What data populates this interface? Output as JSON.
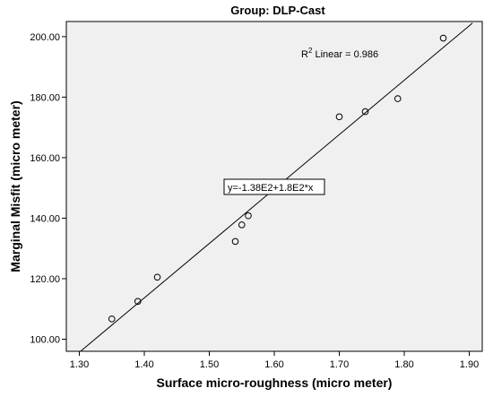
{
  "chart_data": {
    "type": "scatter",
    "title": "Group: DLP-Cast",
    "xlabel": "Surface micro-roughness (micro meter)",
    "ylabel": "Marginal Misfit (micro meter)",
    "xlim": [
      1.28,
      1.92
    ],
    "ylim": [
      96,
      205
    ],
    "x_ticks": [
      "1.30",
      "1.40",
      "1.50",
      "1.60",
      "1.70",
      "1.80",
      "1.90"
    ],
    "x_tick_values": [
      1.3,
      1.4,
      1.5,
      1.6,
      1.7,
      1.8,
      1.9
    ],
    "y_ticks": [
      "100.00",
      "120.00",
      "140.00",
      "160.00",
      "180.00",
      "200.00"
    ],
    "y_tick_values": [
      100,
      120,
      140,
      160,
      180,
      200
    ],
    "grid": false,
    "points": [
      {
        "x": 1.35,
        "y": 106.7
      },
      {
        "x": 1.39,
        "y": 112.5
      },
      {
        "x": 1.42,
        "y": 120.5
      },
      {
        "x": 1.54,
        "y": 132.3
      },
      {
        "x": 1.55,
        "y": 137.8
      },
      {
        "x": 1.56,
        "y": 140.8
      },
      {
        "x": 1.7,
        "y": 173.5
      },
      {
        "x": 1.74,
        "y": 175.2
      },
      {
        "x": 1.79,
        "y": 179.5
      },
      {
        "x": 1.86,
        "y": 199.5
      }
    ],
    "fit_line": {
      "x_start": 1.295,
      "x_end": 1.905
    },
    "equation_label": "y=-1.38E2+1.8E2*x",
    "r2_prefix": "R",
    "r2_sup": "2",
    "r2_suffix": " Linear = 0.986",
    "colors": {
      "plot_bg": "#f0f0f0",
      "marker_stroke": "#000000",
      "line": "#000000"
    }
  }
}
